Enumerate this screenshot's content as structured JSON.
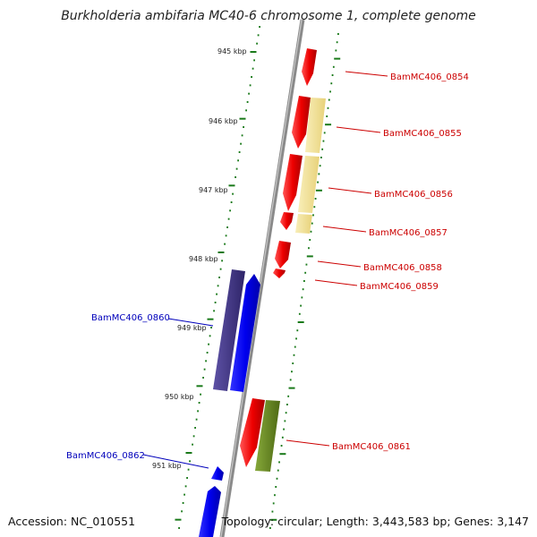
{
  "title": "Burkholderia ambifaria MC40-6 chromosome 1, complete genome",
  "footer": {
    "accession": "Accession: NC_010551",
    "summary": "Topology: circular; Length: 3,443,583 bp; Genes: 3,147"
  },
  "scale_labels": [
    "945 kbp",
    "946 kbp",
    "947 kbp",
    "948 kbp",
    "949 kbp",
    "950 kbp",
    "951 kbp"
  ],
  "genes": [
    {
      "name": "BamMC406_0854",
      "strand": "forward"
    },
    {
      "name": "BamMC406_0855",
      "strand": "forward"
    },
    {
      "name": "BamMC406_0856",
      "strand": "forward"
    },
    {
      "name": "BamMC406_0857",
      "strand": "forward"
    },
    {
      "name": "BamMC406_0858",
      "strand": "forward"
    },
    {
      "name": "BamMC406_0859",
      "strand": "forward"
    },
    {
      "name": "BamMC406_0860",
      "strand": "reverse"
    },
    {
      "name": "BamMC406_0861",
      "strand": "forward"
    },
    {
      "name": "BamMC406_0862",
      "strand": "reverse"
    }
  ],
  "colors": {
    "backbone": "#8a8a8a",
    "tick": "#1a7a1a",
    "forward_gene": "#ee0000",
    "reverse_gene": "#0000ee",
    "forward_label": "#cc0000",
    "reverse_label": "#0000bb",
    "cds_pale": "#f0e29a",
    "cds_olive": "#6a8a22",
    "cds_purple": "#4a3e8a"
  }
}
